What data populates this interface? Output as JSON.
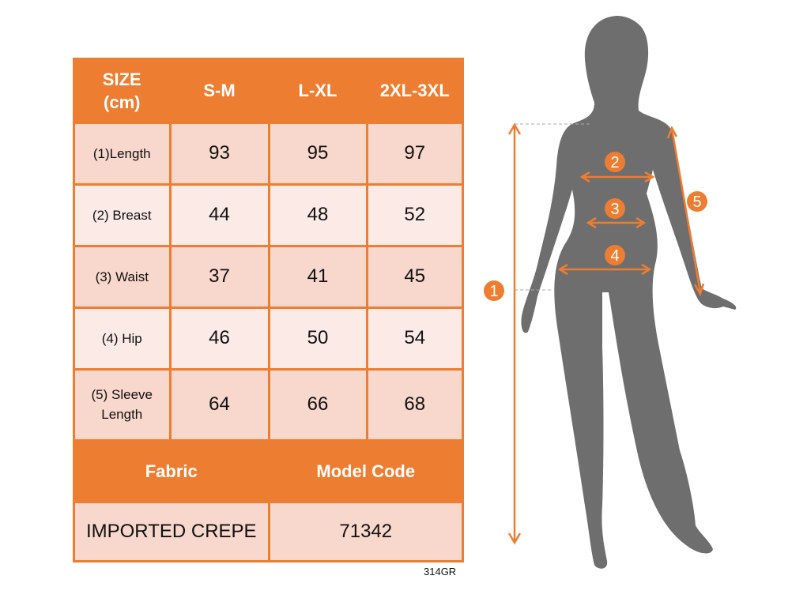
{
  "colors": {
    "accent": "#ED7D31",
    "cell_dark": "#F8D7CC",
    "cell_light": "#FBEAE5",
    "silhouette": "#6E6E6E"
  },
  "table": {
    "header": [
      "SIZE\n(cm)",
      "S-M",
      "L-XL",
      "2XL-3XL"
    ],
    "rows": [
      {
        "label": "(1)Length",
        "values": [
          "93",
          "95",
          "97"
        ]
      },
      {
        "label": "(2) Breast",
        "values": [
          "44",
          "48",
          "52"
        ]
      },
      {
        "label": "(3) Waist",
        "values": [
          "37",
          "41",
          "45"
        ]
      },
      {
        "label": "(4) Hip",
        "values": [
          "46",
          "50",
          "54"
        ]
      },
      {
        "label": "(5) Sleeve Length",
        "values": [
          "64",
          "66",
          "68"
        ]
      }
    ],
    "fabric_label": "Fabric",
    "model_code_label": "Model Code",
    "fabric": "IMPORTED CREPE",
    "model_code": "71342"
  },
  "product_code": "314GR",
  "markers": [
    "1",
    "2",
    "3",
    "4",
    "5"
  ]
}
